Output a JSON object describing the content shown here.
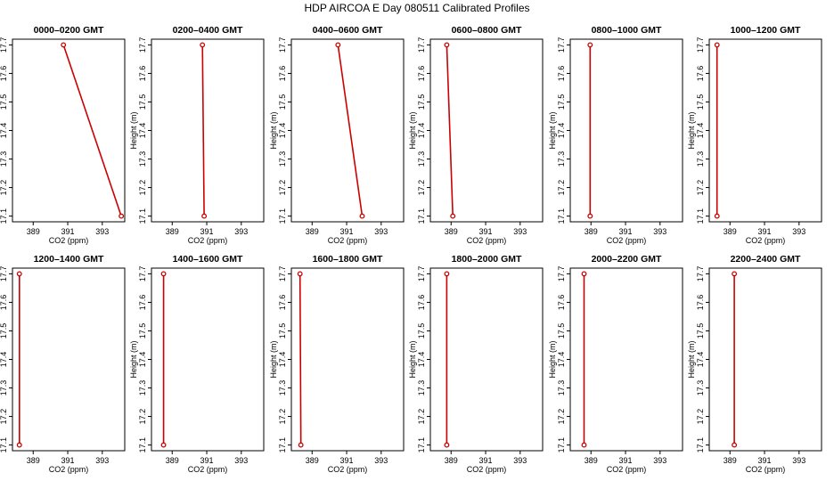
{
  "title": "HDP  AIRCOA E  Day 080511  Calibrated Profiles",
  "chart_data": {
    "type": "line",
    "title": "HDP  AIRCOA E  Day 080511  Calibrated Profiles",
    "xlabel": "CO2 (ppm)",
    "ylabel": "Height (m)",
    "xlim": [
      387.8,
      394.3
    ],
    "ylim": [
      17.08,
      17.72
    ],
    "x_ticks": [
      389,
      391,
      393
    ],
    "y_ticks": [
      17.1,
      17.2,
      17.3,
      17.4,
      17.5,
      17.6,
      17.7
    ],
    "line_color": "#cc0000",
    "panels": [
      {
        "title": "0000–0200 GMT",
        "points": [
          {
            "x": 390.75,
            "y": 17.7
          },
          {
            "x": 394.1,
            "y": 17.1
          }
        ]
      },
      {
        "title": "0200–0400 GMT",
        "points": [
          {
            "x": 390.75,
            "y": 17.7
          },
          {
            "x": 390.85,
            "y": 17.1
          }
        ]
      },
      {
        "title": "0400–0600 GMT",
        "points": [
          {
            "x": 390.5,
            "y": 17.7
          },
          {
            "x": 391.9,
            "y": 17.1
          }
        ]
      },
      {
        "title": "0600–0800 GMT",
        "points": [
          {
            "x": 388.75,
            "y": 17.7
          },
          {
            "x": 389.1,
            "y": 17.1
          }
        ]
      },
      {
        "title": "0800–1000 GMT",
        "points": [
          {
            "x": 388.95,
            "y": 17.7
          },
          {
            "x": 388.95,
            "y": 17.1
          }
        ]
      },
      {
        "title": "1000–1200 GMT",
        "points": [
          {
            "x": 388.25,
            "y": 17.7
          },
          {
            "x": 388.25,
            "y": 17.1
          }
        ]
      },
      {
        "title": "1200–1400 GMT",
        "points": [
          {
            "x": 388.2,
            "y": 17.7
          },
          {
            "x": 388.2,
            "y": 17.1
          }
        ]
      },
      {
        "title": "1400–1600 GMT",
        "points": [
          {
            "x": 388.5,
            "y": 17.7
          },
          {
            "x": 388.5,
            "y": 17.1
          }
        ]
      },
      {
        "title": "1600–1800 GMT",
        "points": [
          {
            "x": 388.3,
            "y": 17.7
          },
          {
            "x": 388.35,
            "y": 17.1
          }
        ]
      },
      {
        "title": "1800–2000 GMT",
        "points": [
          {
            "x": 388.75,
            "y": 17.7
          },
          {
            "x": 388.75,
            "y": 17.1
          }
        ]
      },
      {
        "title": "2000–2200 GMT",
        "points": [
          {
            "x": 388.6,
            "y": 17.7
          },
          {
            "x": 388.6,
            "y": 17.1
          }
        ]
      },
      {
        "title": "2200–2400 GMT",
        "points": [
          {
            "x": 389.25,
            "y": 17.7
          },
          {
            "x": 389.25,
            "y": 17.1
          }
        ]
      }
    ]
  }
}
